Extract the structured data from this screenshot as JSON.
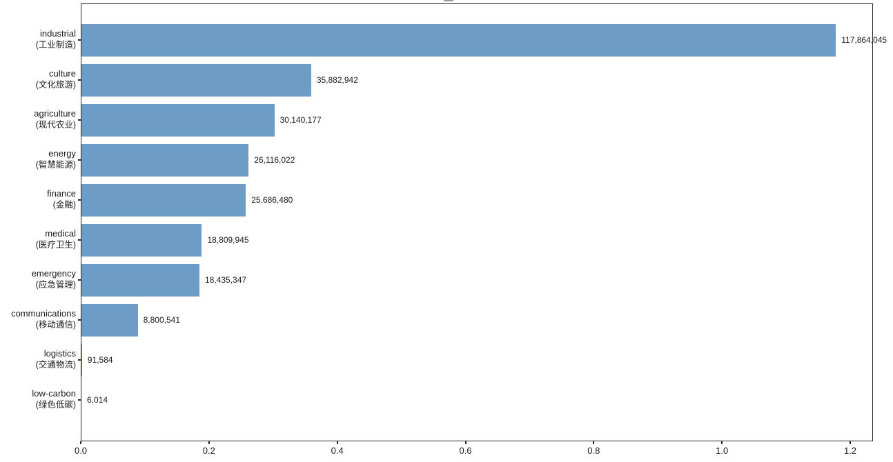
{
  "chart_data": {
    "type": "bar",
    "orientation": "horizontal",
    "title": "",
    "xlabel": "",
    "ylabel": "",
    "grid": false,
    "legend": false,
    "bar_color": "#6d9cc6",
    "axis_color": "#262626",
    "text_color": "#1a1a1a",
    "axis_scale": 100000000,
    "xmax": 123550000,
    "xlim_units": [
      0.0,
      1.2355
    ],
    "xticks": [
      "0.0",
      "0.2",
      "0.4",
      "0.6",
      "0.8",
      "1.0",
      "1.2"
    ],
    "bars": [
      {
        "label_en": "industrial",
        "label_zh": "(工业制造)",
        "value": 117864045,
        "value_label": "117,864,045"
      },
      {
        "label_en": "culture",
        "label_zh": "(文化旅游)",
        "value": 35882942,
        "value_label": "35,882,942"
      },
      {
        "label_en": "agriculture",
        "label_zh": "(现代农业)",
        "value": 30140177,
        "value_label": "30,140,177"
      },
      {
        "label_en": "energy",
        "label_zh": "(智慧能源)",
        "value": 26116022,
        "value_label": "26,116,022"
      },
      {
        "label_en": "finance",
        "label_zh": "(金融)",
        "value": 25686480,
        "value_label": "25,686,480"
      },
      {
        "label_en": "medical",
        "label_zh": "(医疗卫生)",
        "value": 18809945,
        "value_label": "18,809,945"
      },
      {
        "label_en": "emergency",
        "label_zh": "(应急管理)",
        "value": 18435347,
        "value_label": "18,435,347"
      },
      {
        "label_en": "communications",
        "label_zh": "(移动通信)",
        "value": 8800541,
        "value_label": "8,800,541"
      },
      {
        "label_en": "logistics",
        "label_zh": "(交通物流)",
        "value": 91584,
        "value_label": "91,584"
      },
      {
        "label_en": "low-carbon",
        "label_zh": "(绿色低碳)",
        "value": 6014,
        "value_label": "6,014"
      }
    ]
  }
}
